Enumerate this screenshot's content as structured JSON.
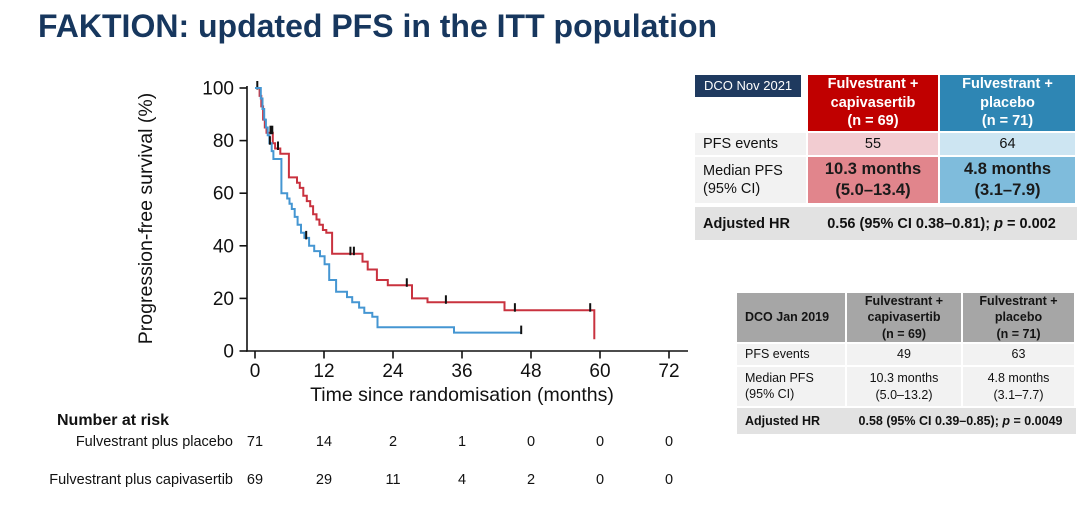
{
  "title": "FAKTION: updated PFS in the ITT population",
  "colors": {
    "title_navy": "#17375e",
    "badge_navy": "#1f3a5f",
    "capivasertib_red": "#c00000",
    "placebo_blue": "#2e86b4",
    "capivasertib_curve": "#c9323f",
    "placebo_curve": "#4596d2",
    "light_red_cell": "#f2ccd1",
    "light_blue_cell": "#cde5f2",
    "mid_red_cell": "#e1858c",
    "mid_blue_cell": "#7fbcdc",
    "gray_header": "#a6a6a6",
    "gray_row": "#f2f2f2",
    "gray_hr_row": "#e2e2e2"
  },
  "chart_data": {
    "type": "line",
    "subtype": "kaplan-meier-step",
    "title": "",
    "xlabel": "Time since randomisation (months)",
    "ylabel": "Progression-free survival (%)",
    "xlim": [
      0,
      72
    ],
    "ylim": [
      0,
      100
    ],
    "x_ticks": [
      0,
      12,
      24,
      36,
      48,
      60,
      72
    ],
    "y_ticks": [
      0,
      20,
      40,
      60,
      80,
      100
    ],
    "grid": false,
    "legend": "none",
    "series": [
      {
        "name": "Fulvestrant plus capivasertib",
        "color": "#c9323f",
        "steps": [
          [
            0,
            100
          ],
          [
            0.8,
            97
          ],
          [
            1.1,
            93
          ],
          [
            1.4,
            88
          ],
          [
            1.7,
            85
          ],
          [
            2.0,
            83
          ],
          [
            3.1,
            79
          ],
          [
            3.5,
            77
          ],
          [
            4.4,
            75
          ],
          [
            5.9,
            66
          ],
          [
            7.3,
            64
          ],
          [
            7.8,
            62
          ],
          [
            8.4,
            59
          ],
          [
            9.0,
            57
          ],
          [
            9.6,
            55
          ],
          [
            10.1,
            52
          ],
          [
            10.7,
            50
          ],
          [
            11.2,
            48
          ],
          [
            11.8,
            46
          ],
          [
            12.4,
            45
          ],
          [
            13.4,
            37
          ],
          [
            18.7,
            34
          ],
          [
            19.6,
            31
          ],
          [
            21.2,
            27
          ],
          [
            23.1,
            25
          ],
          [
            27.3,
            20
          ],
          [
            30.0,
            18.5
          ],
          [
            43.4,
            15.5
          ],
          [
            59.0,
            4.5
          ]
        ],
        "censors": [
          [
            0.4,
            100
          ],
          [
            2.7,
            83
          ],
          [
            3.0,
            83
          ],
          [
            4.0,
            77
          ],
          [
            16.6,
            37
          ],
          [
            17.2,
            37
          ],
          [
            26.4,
            25
          ],
          [
            33.2,
            18.5
          ],
          [
            45.2,
            15.5
          ],
          [
            58.3,
            15.5
          ]
        ]
      },
      {
        "name": "Fulvestrant plus placebo",
        "color": "#4596d2",
        "steps": [
          [
            0,
            100
          ],
          [
            1.0,
            96
          ],
          [
            1.3,
            92
          ],
          [
            1.6,
            88
          ],
          [
            1.9,
            85
          ],
          [
            2.2,
            82
          ],
          [
            2.5,
            79
          ],
          [
            2.9,
            76
          ],
          [
            3.2,
            73
          ],
          [
            4.6,
            60
          ],
          [
            5.6,
            58
          ],
          [
            6.0,
            56
          ],
          [
            6.4,
            54
          ],
          [
            6.9,
            51
          ],
          [
            7.4,
            48
          ],
          [
            8.0,
            45
          ],
          [
            8.6,
            43
          ],
          [
            9.4,
            40
          ],
          [
            10.3,
            38
          ],
          [
            11.3,
            36
          ],
          [
            12.1,
            33
          ],
          [
            12.9,
            27
          ],
          [
            14.1,
            22.5
          ],
          [
            16.0,
            20.5
          ],
          [
            16.9,
            18.5
          ],
          [
            18.1,
            16.5
          ],
          [
            19.0,
            14.5
          ],
          [
            20.4,
            13
          ],
          [
            21.3,
            9
          ],
          [
            34.6,
            7
          ],
          [
            46.4,
            7
          ]
        ],
        "censors": [
          [
            2.6,
            79
          ],
          [
            8.9,
            43
          ],
          [
            46.3,
            7
          ]
        ]
      }
    ]
  },
  "risk_table": {
    "heading": "Number at risk",
    "months": [
      0,
      12,
      24,
      36,
      48,
      60,
      72
    ],
    "rows": [
      {
        "label": "Fulvestrant plus placebo",
        "values": [
          71,
          14,
          2,
          1,
          0,
          0,
          0
        ]
      },
      {
        "label": "Fulvestrant plus capivasertib",
        "values": [
          69,
          29,
          11,
          4,
          2,
          0,
          0
        ]
      }
    ]
  },
  "table_2021": {
    "dco_label": "DCO Nov 2021",
    "col_headers": [
      "Fulvestrant +\ncapivasertib\n(n = 69)",
      "Fulvestrant +\nplacebo\n(n = 71)"
    ],
    "rows": [
      {
        "label": "PFS events",
        "values": [
          "55",
          "64"
        ]
      },
      {
        "label": "Median PFS\n(95% CI)",
        "values": [
          "10.3 months\n(5.0–13.4)",
          "4.8 months\n(3.1–7.9)"
        ]
      }
    ],
    "hr_label": "Adjusted HR",
    "hr_prefix": "0.56 (95% CI 0.38–0.81); ",
    "hr_p": "p",
    "hr_suffix": " = 0.002"
  },
  "table_2019": {
    "dco_label": "DCO Jan 2019",
    "col_headers": [
      "Fulvestrant +\ncapivasertib\n(n = 69)",
      "Fulvestrant +\nplacebo\n(n = 71)"
    ],
    "rows": [
      {
        "label": "PFS events",
        "values": [
          "49",
          "63"
        ]
      },
      {
        "label": "Median PFS\n(95% CI)",
        "values": [
          "10.3 months\n(5.0–13.2)",
          "4.8 months\n(3.1–7.7)"
        ]
      }
    ],
    "hr_label": "Adjusted HR",
    "hr_prefix": "0.58 (95% CI 0.39–0.85); ",
    "hr_p": "p",
    "hr_suffix": " = 0.0049"
  }
}
